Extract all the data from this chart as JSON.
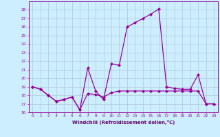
{
  "x": [
    0,
    1,
    2,
    3,
    4,
    5,
    6,
    7,
    8,
    9,
    10,
    11,
    12,
    13,
    14,
    15,
    16,
    17,
    18,
    19,
    20,
    21,
    22,
    23
  ],
  "line1": [
    19,
    18.7,
    18,
    17.3,
    17.5,
    17.8,
    16.3,
    21.2,
    18.5,
    17.5,
    21.7,
    21.5,
    26,
    26.5,
    27,
    27.5,
    28.1,
    19,
    18.8,
    18.7,
    18.7,
    20.4,
    17,
    17
  ],
  "line2": [
    19,
    18.7,
    18,
    17.3,
    17.5,
    17.8,
    16.3,
    18.2,
    18.1,
    17.8,
    18.3,
    18.5,
    18.5,
    18.5,
    18.5,
    18.5,
    18.5,
    18.5,
    18.5,
    18.5,
    18.5,
    18.5,
    17,
    17
  ],
  "ylim": [
    16,
    29
  ],
  "ytick_min": 16,
  "ytick_max": 28,
  "xticks": [
    0,
    1,
    2,
    3,
    4,
    5,
    6,
    7,
    8,
    9,
    10,
    11,
    12,
    13,
    14,
    15,
    16,
    17,
    18,
    19,
    20,
    21,
    22,
    23
  ],
  "xlabel": "Windchill (Refroidissement éolien,°C)",
  "line_color": "#990099",
  "bg_color": "#cceeff",
  "grid_color": "#b0c8d8",
  "xlabel_color": "#660066"
}
